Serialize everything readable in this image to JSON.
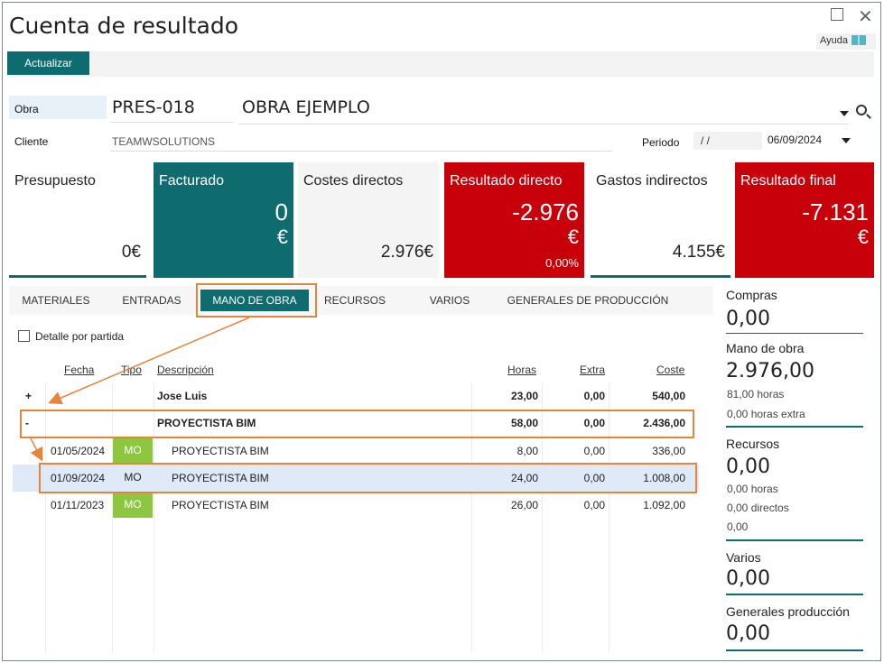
{
  "window": {
    "title": "Cuenta de resultado",
    "help_label": "Ayuda"
  },
  "toolbar": {
    "update_label": "Actualizar"
  },
  "form": {
    "obra_label": "Obra",
    "obra_code": "PRES-018",
    "obra_name": "OBRA EJEMPLO",
    "cliente_label": "Cliente",
    "cliente_value": "TEAMWSOLUTIONS",
    "periodo_label": "Periodo",
    "periodo_from": "/ /",
    "periodo_to": "06/09/2024"
  },
  "kpis": {
    "presupuesto": {
      "title": "Presupuesto",
      "value": "0€"
    },
    "facturado": {
      "title": "Facturado",
      "value": "0",
      "unit": "€"
    },
    "costes": {
      "title": "Costes directos",
      "value": "2.976€"
    },
    "resultado_directo": {
      "title": "Resultado directo",
      "value": "-2.976",
      "unit": "€",
      "pct": "0,00%"
    },
    "gastos": {
      "title": "Gastos indirectos",
      "value": "4.155€"
    },
    "resultado_final": {
      "title": "Resultado final",
      "value": "-7.131",
      "unit": "€"
    }
  },
  "tabs": [
    {
      "label": "MATERIALES"
    },
    {
      "label": "ENTRADAS"
    },
    {
      "label": "MANO DE OBRA"
    },
    {
      "label": "RECURSOS"
    },
    {
      "label": "VARIOS"
    },
    {
      "label": "GENERALES DE PRODUCCIÓN"
    }
  ],
  "detail_checkbox": {
    "label": "Detalle por partida",
    "checked": false
  },
  "grid": {
    "headers": {
      "fecha": "Fecha",
      "tipo": "Tipo",
      "descripcion": "Descripción",
      "horas": "Horas",
      "extra": "Extra",
      "coste": "Coste"
    },
    "rows": [
      {
        "toggle": "+",
        "fecha": "",
        "tipo": "",
        "descripcion": "Jose Luis",
        "horas": "23,00",
        "extra": "0,00",
        "coste": "540,00"
      },
      {
        "toggle": "-",
        "fecha": "",
        "tipo": "",
        "descripcion": "PROYECTISTA BIM",
        "horas": "58,00",
        "extra": "0,00",
        "coste": "2.436,00"
      },
      {
        "toggle": "",
        "fecha": "01/05/2024",
        "tipo": "MO",
        "descripcion": "PROYECTISTA BIM",
        "horas": "8,00",
        "extra": "0,00",
        "coste": "336,00"
      },
      {
        "toggle": "",
        "fecha": "01/09/2024",
        "tipo": "MO",
        "descripcion": "PROYECTISTA BIM",
        "horas": "24,00",
        "extra": "0,00",
        "coste": "1.008,00"
      },
      {
        "toggle": "",
        "fecha": "01/11/2023",
        "tipo": "MO",
        "descripcion": "PROYECTISTA BIM",
        "horas": "26,00",
        "extra": "0,00",
        "coste": "1.092,00"
      }
    ]
  },
  "sidebar": {
    "compras": {
      "label": "Compras",
      "value": "0,00"
    },
    "mano_obra": {
      "label": "Mano de obra",
      "value": "2.976,00",
      "horas": "81,00 horas",
      "extra": "0,00 horas extra"
    },
    "recursos": {
      "label": "Recursos",
      "value": "0,00",
      "horas": "0,00 horas",
      "directos": "0,00 directos",
      "other": "0,00"
    },
    "varios": {
      "label": "Varios",
      "value": "0,00"
    },
    "generales": {
      "label": "Generales producción",
      "value": "0,00"
    }
  },
  "colors": {
    "teal": "#0e6b6e",
    "red": "#c8000a",
    "green": "#8dc63f",
    "highlight": "#e8833a",
    "selected_row": "#dfe9f7"
  }
}
